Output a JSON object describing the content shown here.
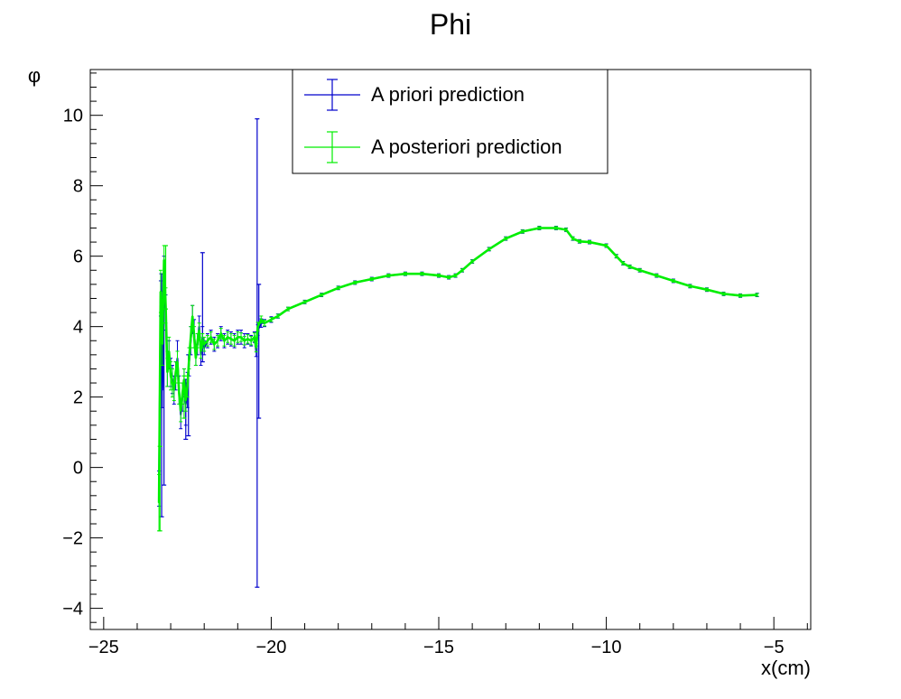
{
  "chart_data": {
    "type": "line",
    "title": "Phi",
    "xlabel": "x(cm)",
    "ylabel": "φ",
    "xlim": [
      -25.4,
      -3.9
    ],
    "ylim": [
      -4.6,
      11.3
    ],
    "x_ticks": [
      -25,
      -20,
      -15,
      -10,
      -5
    ],
    "x_tick_labels": [
      "−25",
      "−20",
      "−15",
      "−10",
      "−5"
    ],
    "y_ticks": [
      -4,
      -2,
      0,
      2,
      4,
      6,
      8,
      10
    ],
    "y_tick_labels": [
      "−4",
      "−2",
      "0",
      "2",
      "4",
      "6",
      "8",
      "10"
    ],
    "grid": false,
    "legend_position": "top-center",
    "series": [
      {
        "name": "A priori prediction",
        "color": "#0000cc",
        "x": [
          -23.35,
          -23.3,
          -23.25,
          -23.2,
          -23.15,
          -23.1,
          -23.05,
          -23.0,
          -22.95,
          -22.9,
          -22.85,
          -22.8,
          -22.75,
          -22.7,
          -22.65,
          -22.6,
          -22.55,
          -22.5,
          -22.45,
          -22.4,
          -22.35,
          -22.3,
          -22.25,
          -22.2,
          -22.15,
          -22.1,
          -22.05,
          -22.0,
          -21.9,
          -21.8,
          -21.7,
          -21.6,
          -21.5,
          -21.4,
          -21.3,
          -21.2,
          -21.1,
          -21.0,
          -20.9,
          -20.8,
          -20.7,
          -20.6,
          -20.5,
          -20.45,
          -20.4,
          -20.3,
          -20.2,
          -20.0,
          -19.8,
          -19.5,
          -19.0,
          -18.5,
          -18.0,
          -17.5,
          -17.0,
          -16.5,
          -16.0,
          -15.5,
          -15.0,
          -14.7,
          -14.5,
          -14.3,
          -14.0,
          -13.5,
          -13.0,
          -12.5,
          -12.0,
          -11.5,
          -11.2,
          -11.0,
          -10.8,
          -10.5,
          -10.0,
          -9.7,
          -9.5,
          -9.3,
          -9.0,
          -8.5,
          -8.0,
          -7.5,
          -7.0,
          -6.5,
          -6.0,
          -5.5
        ],
        "y": [
          -0.6,
          4.8,
          2.2,
          5.5,
          4.4,
          2.8,
          3.2,
          2.7,
          2.5,
          2.2,
          2.6,
          3.1,
          2.2,
          1.5,
          2.0,
          2.4,
          1.8,
          2.2,
          3.0,
          3.6,
          4.2,
          3.8,
          3.2,
          3.5,
          4.0,
          3.2,
          3.7,
          3.4,
          3.6,
          3.7,
          3.5,
          3.6,
          3.8,
          3.6,
          3.7,
          3.65,
          3.6,
          3.7,
          3.7,
          3.6,
          3.65,
          3.6,
          3.7,
          3.3,
          3.9,
          4.1,
          4.1,
          4.2,
          4.3,
          4.5,
          4.7,
          4.9,
          5.1,
          5.25,
          5.35,
          5.45,
          5.5,
          5.5,
          5.45,
          5.4,
          5.45,
          5.6,
          5.85,
          6.2,
          6.5,
          6.7,
          6.8,
          6.8,
          6.75,
          6.5,
          6.42,
          6.4,
          6.3,
          6.0,
          5.8,
          5.7,
          5.6,
          5.45,
          5.3,
          5.15,
          5.05,
          4.93,
          4.88,
          4.9
        ],
        "err": [
          0.5,
          0.5,
          0.5,
          0.5,
          0.5,
          0.5,
          0.4,
          0.4,
          0.4,
          0.4,
          0.4,
          0.5,
          0.4,
          0.4,
          0.4,
          0.4,
          0.6,
          0.5,
          0.4,
          0.4,
          0.4,
          0.4,
          0.3,
          0.3,
          0.3,
          0.3,
          0.3,
          0.2,
          0.2,
          0.2,
          0.2,
          0.2,
          0.2,
          0.2,
          0.2,
          0.2,
          0.2,
          0.2,
          0.2,
          0.2,
          0.15,
          0.15,
          0.15,
          0.15,
          0.15,
          0.12,
          0.1,
          0.08,
          0.06,
          0.05,
          0.05,
          0.05,
          0.05,
          0.05,
          0.05,
          0.05,
          0.05,
          0.05,
          0.05,
          0.05,
          0.05,
          0.05,
          0.05,
          0.05,
          0.05,
          0.05,
          0.05,
          0.05,
          0.05,
          0.05,
          0.05,
          0.05,
          0.05,
          0.05,
          0.05,
          0.05,
          0.05,
          0.05,
          0.05,
          0.05,
          0.05,
          0.05,
          0.05,
          0.05
        ],
        "big_error_bars": [
          {
            "x": -23.27,
            "lo": -1.4,
            "hi": 5.5
          },
          {
            "x": -23.2,
            "lo": -0.5,
            "hi": 4.8
          },
          {
            "x": -22.55,
            "lo": 0.8,
            "hi": 2.5
          },
          {
            "x": -22.47,
            "lo": 0.9,
            "hi": 3.2
          },
          {
            "x": -22.05,
            "lo": 3.0,
            "hi": 6.1
          },
          {
            "x": -20.42,
            "lo": -3.4,
            "hi": 9.9
          },
          {
            "x": -20.37,
            "lo": 1.4,
            "hi": 5.2
          }
        ]
      },
      {
        "name": "A posteriori prediction",
        "color": "#00ee00",
        "x": [
          -23.35,
          -23.3,
          -23.25,
          -23.2,
          -23.15,
          -23.1,
          -23.05,
          -23.0,
          -22.95,
          -22.9,
          -22.85,
          -22.8,
          -22.75,
          -22.7,
          -22.65,
          -22.6,
          -22.55,
          -22.5,
          -22.45,
          -22.4,
          -22.35,
          -22.3,
          -22.25,
          -22.2,
          -22.15,
          -22.1,
          -22.05,
          -22.0,
          -21.9,
          -21.8,
          -21.7,
          -21.6,
          -21.5,
          -21.4,
          -21.3,
          -21.2,
          -21.1,
          -21.0,
          -20.9,
          -20.8,
          -20.7,
          -20.6,
          -20.5,
          -20.45,
          -20.4,
          -20.3,
          -20.2,
          -20.0,
          -19.8,
          -19.5,
          -19.0,
          -18.5,
          -18.0,
          -17.5,
          -17.0,
          -16.5,
          -16.0,
          -15.5,
          -15.0,
          -14.7,
          -14.5,
          -14.3,
          -14.0,
          -13.5,
          -13.0,
          -12.5,
          -12.0,
          -11.5,
          -11.2,
          -11.0,
          -10.8,
          -10.5,
          -10.0,
          -9.7,
          -9.5,
          -9.3,
          -9.0,
          -8.5,
          -8.0,
          -7.5,
          -7.0,
          -6.5,
          -6.0,
          -5.5
        ],
        "y": [
          -1.0,
          5.0,
          3.5,
          5.9,
          4.6,
          2.7,
          3.3,
          2.6,
          2.4,
          2.2,
          2.7,
          3.0,
          2.1,
          1.6,
          2.1,
          2.5,
          1.9,
          2.3,
          3.1,
          3.7,
          4.3,
          3.7,
          3.1,
          3.6,
          3.9,
          3.3,
          3.6,
          3.5,
          3.6,
          3.7,
          3.5,
          3.6,
          3.8,
          3.6,
          3.7,
          3.65,
          3.6,
          3.7,
          3.7,
          3.6,
          3.65,
          3.6,
          3.7,
          3.4,
          4.0,
          4.2,
          4.1,
          4.2,
          4.3,
          4.5,
          4.7,
          4.9,
          5.1,
          5.25,
          5.35,
          5.45,
          5.5,
          5.5,
          5.45,
          5.4,
          5.45,
          5.6,
          5.85,
          6.2,
          6.5,
          6.7,
          6.8,
          6.8,
          6.75,
          6.5,
          6.42,
          6.4,
          6.3,
          6.0,
          5.8,
          5.7,
          5.6,
          5.45,
          5.3,
          5.15,
          5.05,
          4.93,
          4.88,
          4.9
        ],
        "err": [
          0.8,
          0.6,
          0.6,
          0.4,
          0.5,
          0.4,
          0.4,
          0.4,
          0.4,
          0.3,
          0.3,
          0.3,
          0.3,
          0.3,
          0.3,
          0.3,
          0.3,
          0.3,
          0.3,
          0.3,
          0.3,
          0.3,
          0.2,
          0.2,
          0.2,
          0.2,
          0.2,
          0.2,
          0.15,
          0.15,
          0.15,
          0.15,
          0.15,
          0.15,
          0.15,
          0.15,
          0.15,
          0.15,
          0.12,
          0.12,
          0.12,
          0.12,
          0.12,
          0.12,
          0.12,
          0.1,
          0.08,
          0.06,
          0.05,
          0.05,
          0.04,
          0.04,
          0.04,
          0.04,
          0.04,
          0.04,
          0.04,
          0.04,
          0.04,
          0.04,
          0.04,
          0.04,
          0.04,
          0.04,
          0.04,
          0.04,
          0.04,
          0.04,
          0.04,
          0.04,
          0.04,
          0.04,
          0.04,
          0.04,
          0.04,
          0.04,
          0.04,
          0.04,
          0.04,
          0.04,
          0.04,
          0.04,
          0.04,
          0.04
        ],
        "big_error_bars": [
          {
            "x": -23.32,
            "lo": -1.8,
            "hi": 0.6
          },
          {
            "x": -23.15,
            "lo": 4.5,
            "hi": 6.3
          },
          {
            "x": -22.6,
            "lo": 1.4,
            "hi": 2.6
          }
        ]
      }
    ]
  }
}
